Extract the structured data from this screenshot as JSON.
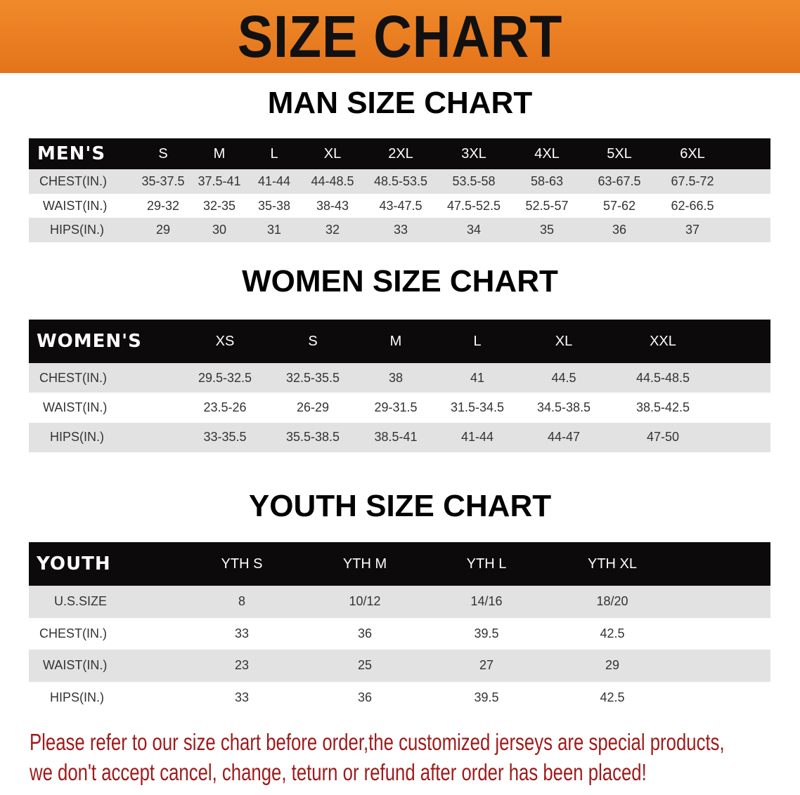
{
  "title": "SIZE CHART",
  "colors": {
    "banner": "#e97d22",
    "header_row": "#0c0a0a",
    "stripe": "#e2e2e2",
    "note": "#9e1a1a"
  },
  "men": {
    "title": "MAN SIZE CHART",
    "header": [
      "MEN'S",
      "S",
      "M",
      "L",
      "XL",
      "2XL",
      "3XL",
      "4XL",
      "5XL",
      "6XL"
    ],
    "rows": [
      [
        "CHEST(IN.)",
        "35-37.5",
        "37.5-41",
        "41-44",
        "44-48.5",
        "48.5-53.5",
        "53.5-58",
        "58-63",
        "63-67.5",
        "67.5-72"
      ],
      [
        "WAIST(IN.)",
        "29-32",
        "32-35",
        "35-38",
        "38-43",
        "43-47.5",
        "47.5-52.5",
        "52.5-57",
        "57-62",
        "62-66.5"
      ],
      [
        "HIPS(IN.)",
        "29",
        "30",
        "31",
        "32",
        "33",
        "34",
        "35",
        "36",
        "37"
      ]
    ]
  },
  "women": {
    "title": "WOMEN SIZE CHART",
    "header": [
      "WOMEN'S",
      "XS",
      "S",
      "M",
      "L",
      "XL",
      "XXL"
    ],
    "rows": [
      [
        "CHEST(IN.)",
        "29.5-32.5",
        "32.5-35.5",
        "38",
        "41",
        "44.5",
        "44.5-48.5"
      ],
      [
        "WAIST(IN.)",
        "23.5-26",
        "26-29",
        "29-31.5",
        "31.5-34.5",
        "34.5-38.5",
        "38.5-42.5"
      ],
      [
        "HIPS(IN.)",
        "33-35.5",
        "35.5-38.5",
        "38.5-41",
        "41-44",
        "44-47",
        "47-50"
      ]
    ]
  },
  "youth": {
    "title": "YOUTH SIZE CHART",
    "header": [
      "YOUTH",
      "YTH S",
      "YTH M",
      "YTH L",
      "YTH XL"
    ],
    "rows": [
      [
        "U.S.SIZE",
        "8",
        "10/12",
        "14/16",
        "18/20"
      ],
      [
        "CHEST(IN.)",
        "33",
        "36",
        "39.5",
        "42.5"
      ],
      [
        "WAIST(IN.)",
        "23",
        "25",
        "27",
        "29"
      ],
      [
        "HIPS(IN.)",
        "33",
        "36",
        "39.5",
        "42.5"
      ]
    ]
  },
  "note": {
    "line1": "Please refer to our size chart before order,the customized jerseys are special products,",
    "line2": "we don't accept cancel, change, teturn or refund after order has been placed!"
  }
}
